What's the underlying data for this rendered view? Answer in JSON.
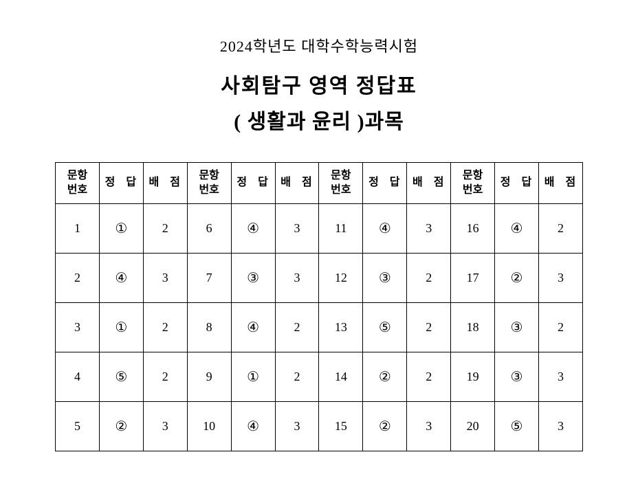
{
  "header": {
    "year_line": "2024학년도 대학수학능력시험",
    "title_line": "사회탐구 영역 정답표",
    "subject_line": "( 생활과 윤리 )과목"
  },
  "table": {
    "col_labels": {
      "qnum": "문항\n번호",
      "answer": "정 답",
      "points": "배 점"
    },
    "groups": 4,
    "circled_map": [
      "",
      "①",
      "②",
      "③",
      "④",
      "⑤"
    ],
    "rows": [
      [
        {
          "q": 1,
          "a": 1,
          "p": 2
        },
        {
          "q": 6,
          "a": 4,
          "p": 3
        },
        {
          "q": 11,
          "a": 4,
          "p": 3
        },
        {
          "q": 16,
          "a": 4,
          "p": 2
        }
      ],
      [
        {
          "q": 2,
          "a": 4,
          "p": 3
        },
        {
          "q": 7,
          "a": 3,
          "p": 3
        },
        {
          "q": 12,
          "a": 3,
          "p": 2
        },
        {
          "q": 17,
          "a": 2,
          "p": 3
        }
      ],
      [
        {
          "q": 3,
          "a": 1,
          "p": 2
        },
        {
          "q": 8,
          "a": 4,
          "p": 2
        },
        {
          "q": 13,
          "a": 5,
          "p": 2
        },
        {
          "q": 18,
          "a": 3,
          "p": 2
        }
      ],
      [
        {
          "q": 4,
          "a": 5,
          "p": 2
        },
        {
          "q": 9,
          "a": 1,
          "p": 2
        },
        {
          "q": 14,
          "a": 2,
          "p": 2
        },
        {
          "q": 19,
          "a": 3,
          "p": 3
        }
      ],
      [
        {
          "q": 5,
          "a": 2,
          "p": 3
        },
        {
          "q": 10,
          "a": 4,
          "p": 3
        },
        {
          "q": 15,
          "a": 2,
          "p": 3
        },
        {
          "q": 20,
          "a": 5,
          "p": 3
        }
      ]
    ]
  }
}
